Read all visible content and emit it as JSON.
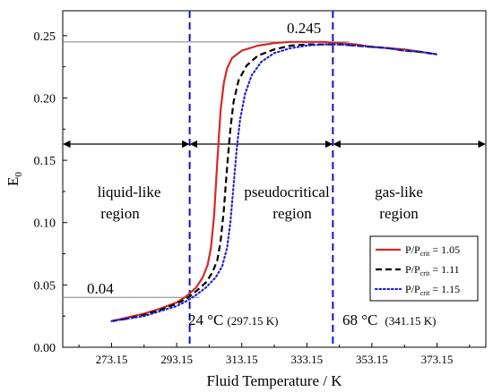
{
  "chart_data": {
    "type": "line",
    "xlabel": "Fluid Temperature / K",
    "ylabel": "E",
    "ylabel_sub": "0",
    "xlim": [
      258.15,
      388.15
    ],
    "ylim": [
      0.0,
      0.27
    ],
    "xticks": [
      "273.15",
      "293.15",
      "313.15",
      "333.15",
      "353.15",
      "373.15"
    ],
    "xtick_values": [
      273.15,
      293.15,
      313.15,
      333.15,
      353.15,
      373.15
    ],
    "yticks": [
      "0.00",
      "0.05",
      "0.10",
      "0.15",
      "0.20",
      "0.25"
    ],
    "ytick_values": [
      0.0,
      0.05,
      0.1,
      0.15,
      0.2,
      0.25
    ],
    "series": [
      {
        "name": "P/P",
        "name_sub": "crit",
        "name_value": " = 1.05",
        "color": "#d42a2a",
        "dash": "solid",
        "x": [
          273.15,
          278.15,
          283.15,
          288.15,
          293.15,
          296.15,
          299.15,
          301.15,
          302.65,
          303.65,
          304.65,
          305.65,
          306.65,
          307.65,
          308.65,
          310.15,
          313.15,
          318.15,
          323.15,
          328.15,
          333.15,
          338.15,
          343.15,
          348.15,
          353.15,
          358.15,
          363.15,
          368.15,
          373.15
        ],
        "y": [
          0.021,
          0.024,
          0.027,
          0.031,
          0.036,
          0.041,
          0.048,
          0.056,
          0.066,
          0.079,
          0.105,
          0.15,
          0.19,
          0.212,
          0.224,
          0.232,
          0.238,
          0.242,
          0.244,
          0.245,
          0.245,
          0.245,
          0.244,
          0.243,
          0.241,
          0.24,
          0.239,
          0.237,
          0.235
        ]
      },
      {
        "name": "P/P",
        "name_sub": "crit",
        "name_value": " = 1.11",
        "color": "#000000",
        "dash": "dashed",
        "x": [
          273.15,
          278.15,
          283.15,
          288.15,
          293.15,
          296.15,
          299.15,
          302.15,
          304.15,
          305.65,
          306.65,
          307.65,
          308.65,
          309.65,
          310.65,
          312.15,
          314.65,
          318.15,
          323.15,
          328.15,
          333.15,
          338.15,
          343.15,
          348.15,
          353.15,
          358.15,
          363.15,
          368.15,
          373.15
        ],
        "y": [
          0.021,
          0.023,
          0.026,
          0.03,
          0.035,
          0.039,
          0.045,
          0.052,
          0.06,
          0.07,
          0.085,
          0.11,
          0.145,
          0.175,
          0.197,
          0.214,
          0.226,
          0.234,
          0.239,
          0.242,
          0.243,
          0.243,
          0.243,
          0.242,
          0.241,
          0.24,
          0.238,
          0.237,
          0.235
        ]
      },
      {
        "name": "P/P",
        "name_sub": "crit",
        "name_value": " = 1.15",
        "color": "#2222cc",
        "dash": "dotted",
        "x": [
          273.15,
          278.15,
          283.15,
          288.15,
          293.15,
          296.15,
          299.15,
          302.15,
          305.15,
          307.15,
          308.65,
          309.65,
          310.65,
          311.65,
          312.65,
          314.15,
          316.15,
          319.15,
          323.15,
          328.15,
          333.15,
          338.15,
          343.15,
          348.15,
          353.15,
          358.15,
          363.15,
          368.15,
          373.15
        ],
        "y": [
          0.021,
          0.023,
          0.025,
          0.029,
          0.033,
          0.037,
          0.042,
          0.048,
          0.056,
          0.065,
          0.08,
          0.1,
          0.13,
          0.16,
          0.183,
          0.203,
          0.218,
          0.229,
          0.236,
          0.24,
          0.242,
          0.243,
          0.243,
          0.242,
          0.241,
          0.24,
          0.238,
          0.237,
          0.235
        ]
      }
    ],
    "reference_lines": [
      {
        "kind": "horizontal",
        "y": 0.245,
        "x_from": 258.15,
        "x_to": 346.15,
        "color": "#808080"
      },
      {
        "kind": "horizontal",
        "y": 0.04,
        "x_from": 258.15,
        "x_to": 300.15,
        "color": "#808080"
      },
      {
        "kind": "vertical",
        "x": 297.15,
        "color": "#1111cc",
        "dash": "dashed"
      },
      {
        "kind": "vertical",
        "x": 341.15,
        "color": "#1111cc",
        "dash": "dashed"
      }
    ],
    "region_arrows": {
      "y": 0.163
    },
    "annotations": {
      "top_value": "0.245",
      "bottom_value": "0.04",
      "region_liquid_1": "liquid-like",
      "region_liquid_2": "region",
      "region_pseudo_1": "pseudocritical",
      "region_pseudo_2": "region",
      "region_gas_1": "gas-like",
      "region_gas_2": "region",
      "temp1_main": "24 °C",
      "temp1_k": "(297.15 K)",
      "temp2_main": "68 °C",
      "temp2_k": "(341.15 K)"
    },
    "legend_position": "bottom-right",
    "grid": false
  }
}
